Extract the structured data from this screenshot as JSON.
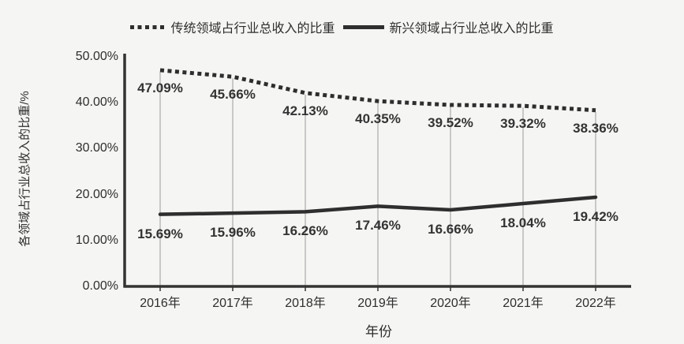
{
  "chart_data": {
    "type": "line",
    "title": "",
    "categories": [
      "2016年",
      "2017年",
      "2018年",
      "2019年",
      "2020年",
      "2021年",
      "2022年"
    ],
    "series": [
      {
        "name": "传统领域占行业总收入的比重",
        "style": "dotted",
        "values": [
          47.09,
          45.66,
          42.13,
          40.35,
          39.52,
          39.32,
          38.36
        ],
        "labels": [
          "47.09%",
          "45.66%",
          "42.13%",
          "40.35%",
          "39.52%",
          "39.32%",
          "38.36%"
        ]
      },
      {
        "name": "新兴领域占行业总收入的比重",
        "style": "solid",
        "values": [
          15.69,
          15.96,
          16.26,
          17.46,
          16.66,
          18.04,
          19.42
        ],
        "labels": [
          "15.69%",
          "15.96%",
          "16.26%",
          "17.46%",
          "16.66%",
          "18.04%",
          "19.42%"
        ]
      }
    ],
    "xlabel": "年份",
    "ylabel": "各领域占行业总收入的比重/%",
    "ylim": [
      0,
      50
    ],
    "yticks": [
      "0.00%",
      "10.00%",
      "20.00%",
      "30.00%",
      "40.00%",
      "50.00%"
    ],
    "ytick_values": [
      0,
      10,
      20,
      30,
      40,
      50
    ],
    "grid": "vertical-drop-lines",
    "legend_position": "top"
  },
  "colors": {
    "line": "#2e2e2e",
    "axis": "#333333",
    "drop_lines": "#9b9b9b",
    "text": "#2b2b2b",
    "background": "#f5f5f3"
  }
}
